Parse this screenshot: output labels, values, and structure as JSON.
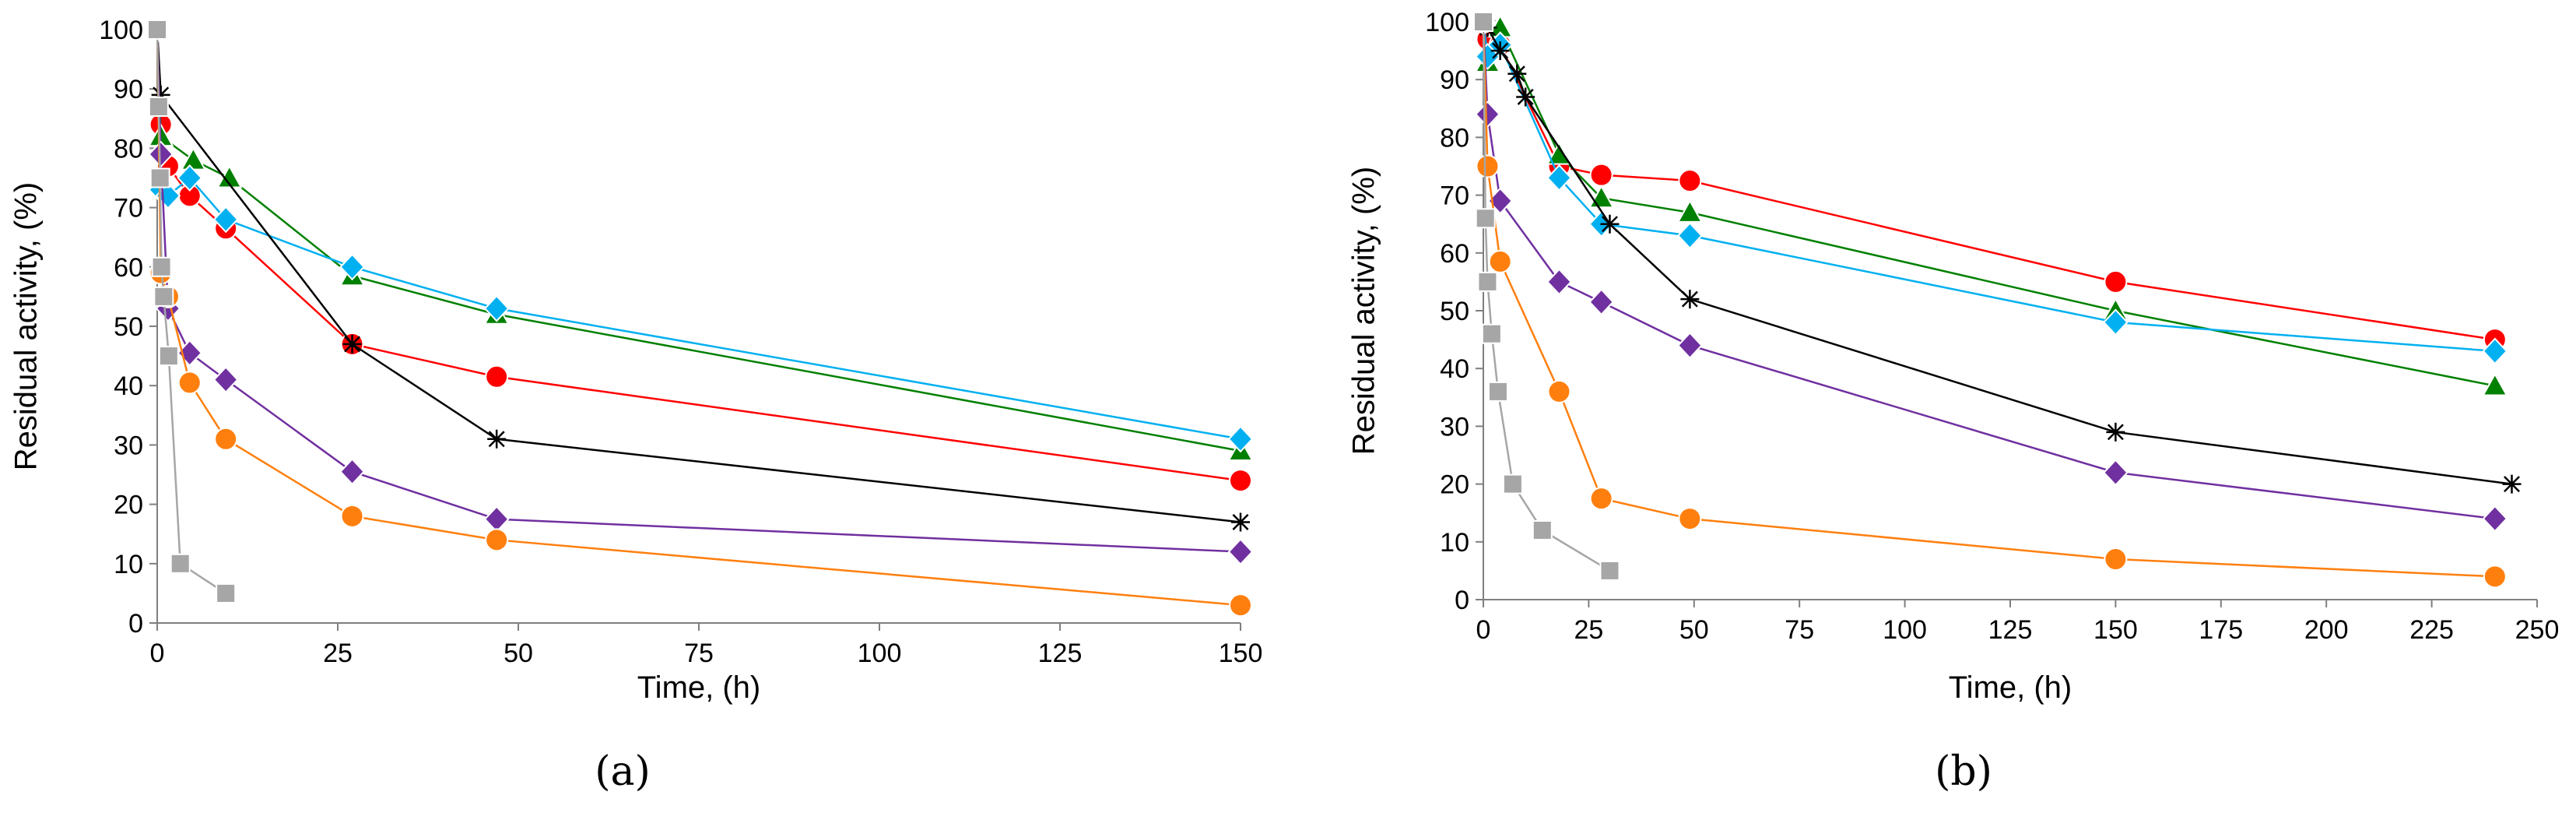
{
  "chart_data": [
    {
      "type": "line",
      "panel_label": "(a)",
      "xlabel": "Time, (h)",
      "ylabel": "Residual activity, (%)",
      "xlim": [
        0,
        150
      ],
      "ylim": [
        0,
        100
      ],
      "xticks": [
        0,
        25,
        50,
        75,
        100,
        125,
        150
      ],
      "yticks": [
        0,
        10,
        20,
        30,
        40,
        50,
        60,
        70,
        80,
        90,
        100
      ],
      "grid": false,
      "legend": "none",
      "series": [
        {
          "name": "red",
          "color": "#ff0000",
          "marker": "circle",
          "x": [
            0,
            0.5,
            1.5,
            4.5,
            9.5,
            27,
            47,
            150
          ],
          "y": [
            100,
            84,
            77,
            72,
            66.5,
            47,
            41.5,
            24
          ]
        },
        {
          "name": "green",
          "color": "#008000",
          "marker": "triangle",
          "x": [
            0,
            0.5,
            5,
            10,
            27,
            47,
            150
          ],
          "y": [
            100,
            82,
            78,
            75,
            58.5,
            52,
            29
          ]
        },
        {
          "name": "cyan",
          "color": "#00b0f0",
          "marker": "diamond",
          "x": [
            0,
            0.5,
            1.5,
            4.5,
            9.5,
            27,
            47,
            150
          ],
          "y": [
            100,
            73,
            72,
            75,
            68,
            60,
            53,
            31
          ]
        },
        {
          "name": "black",
          "color": "#000000",
          "marker": "asterisk",
          "x": [
            0,
            0.5,
            27,
            47,
            150
          ],
          "y": [
            100,
            89,
            47,
            31,
            17
          ]
        },
        {
          "name": "purple",
          "color": "#7030a0",
          "marker": "diamond",
          "x": [
            0,
            0.5,
            1.5,
            4.5,
            9.5,
            27,
            47,
            150
          ],
          "y": [
            100,
            79,
            53,
            45.5,
            41,
            25.5,
            17.5,
            12
          ]
        },
        {
          "name": "orange",
          "color": "#ff7f0e",
          "marker": "circle",
          "x": [
            0,
            0.5,
            1.5,
            4.5,
            9.5,
            27,
            47,
            150
          ],
          "y": [
            100,
            59,
            55,
            40.5,
            31,
            18,
            14,
            3
          ]
        },
        {
          "name": "gray",
          "color": "#a6a6a6",
          "marker": "square",
          "x": [
            0,
            0.2,
            0.4,
            0.6,
            0.9,
            1.6,
            3.2,
            9.5
          ],
          "y": [
            100,
            87,
            75,
            60,
            55,
            45,
            10,
            5
          ]
        }
      ]
    },
    {
      "type": "line",
      "panel_label": "(b)",
      "xlabel": "Time, (h)",
      "ylabel": "Residual activity, (%)",
      "xlim": [
        0,
        250
      ],
      "ylim": [
        0,
        100
      ],
      "xticks": [
        0,
        25,
        50,
        75,
        100,
        125,
        150,
        175,
        200,
        225,
        250
      ],
      "yticks": [
        0,
        10,
        20,
        30,
        40,
        50,
        60,
        70,
        80,
        90,
        100
      ],
      "grid": false,
      "legend": "none",
      "series": [
        {
          "name": "red",
          "color": "#ff0000",
          "marker": "circle",
          "x": [
            0,
            1,
            4,
            18,
            28,
            49,
            150,
            240
          ],
          "y": [
            100,
            97,
            96,
            75,
            73.5,
            72.5,
            55,
            45
          ]
        },
        {
          "name": "green",
          "color": "#008000",
          "marker": "triangle",
          "x": [
            0,
            1,
            4,
            18,
            28,
            49,
            150,
            240
          ],
          "y": [
            100,
            93,
            99,
            77,
            69.5,
            67,
            50,
            37
          ]
        },
        {
          "name": "cyan",
          "color": "#00b0f0",
          "marker": "diamond",
          "x": [
            0,
            1,
            4,
            18,
            28,
            49,
            150,
            240
          ],
          "y": [
            100,
            94,
            96,
            73,
            65,
            63,
            48,
            43
          ]
        },
        {
          "name": "black",
          "color": "#000000",
          "marker": "asterisk",
          "x": [
            0,
            1,
            4,
            8,
            10,
            30,
            49,
            150,
            244
          ],
          "y": [
            100,
            99,
            95,
            91,
            87,
            65,
            52,
            29,
            20
          ]
        },
        {
          "name": "purple",
          "color": "#7030a0",
          "marker": "diamond",
          "x": [
            0,
            1,
            4,
            18,
            28,
            49,
            150,
            240
          ],
          "y": [
            100,
            84,
            69,
            55,
            51.5,
            44,
            22,
            14
          ]
        },
        {
          "name": "orange",
          "color": "#ff7f0e",
          "marker": "circle",
          "x": [
            0,
            1,
            4,
            18,
            28,
            49,
            150,
            240
          ],
          "y": [
            100,
            75,
            58.5,
            36,
            17.5,
            14,
            7,
            4
          ]
        },
        {
          "name": "gray",
          "color": "#a6a6a6",
          "marker": "square",
          "x": [
            0,
            0.5,
            1,
            2,
            3.5,
            7,
            14,
            30
          ],
          "y": [
            100,
            66,
            55,
            46,
            36,
            20,
            12,
            5
          ]
        }
      ]
    }
  ]
}
